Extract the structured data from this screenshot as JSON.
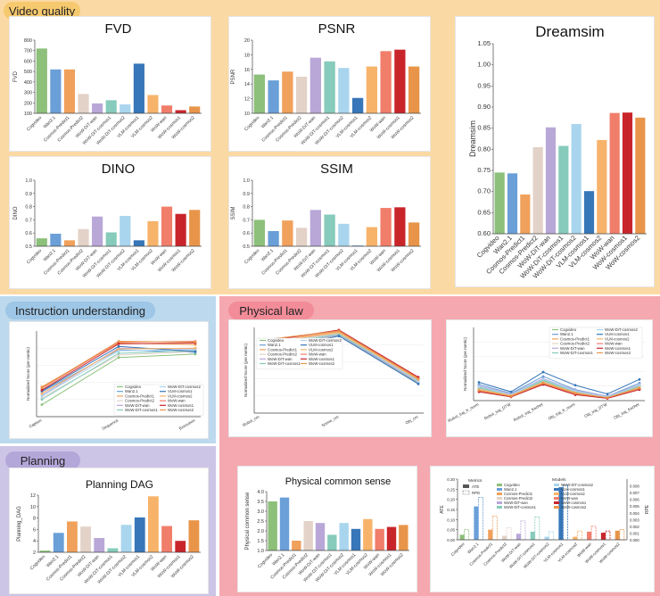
{
  "sections": {
    "video_quality": "Video quality",
    "instruction": "Instruction understanding",
    "physical_law": "Physical law",
    "planning": "Planning"
  },
  "colors": {
    "video_bg": "#fbd9a4",
    "instruction_bg": "#bcd9ee",
    "physical_bg": "#f5a8b0",
    "planning_bg": "#cdc5e6"
  },
  "chart_data": [
    {
      "type": "bar",
      "title": "FVD",
      "ylabel": "FVD",
      "ylim": [
        100,
        800
      ],
      "yticks": [
        100,
        200,
        300,
        400,
        500,
        600,
        700,
        800
      ],
      "categories": [
        "Cogvideo",
        "Wan2.1",
        "Cosmos-Predict1",
        "Cosmos-Predict2",
        "WoW-DiT-wan",
        "WoW-DiT-cosmos1",
        "WoW-DiT-cosmos2",
        "VLM-cosmos1",
        "VLM-cosmos2",
        "WoW-wan",
        "WoW-cosmos1",
        "WoW-cosmos2"
      ],
      "values": [
        720,
        520,
        520,
        285,
        195,
        225,
        185,
        575,
        275,
        175,
        130,
        165
      ]
    },
    {
      "type": "bar",
      "title": "PSNR",
      "ylabel": "PSNR",
      "ylim": [
        10,
        20
      ],
      "yticks": [
        10,
        12,
        14,
        16,
        18,
        20
      ],
      "categories": [
        "Cogvideo",
        "Wan2.1",
        "Cosmos-Predict1",
        "Cosmos-Predict2",
        "WoW-DiT-wan",
        "WoW-DiT-cosmos1",
        "WoW-DiT-cosmos2",
        "VLM-cosmos1",
        "VLM-cosmos2",
        "WoW-wan",
        "WoW-cosmos1",
        "WoW-cosmos2"
      ],
      "values": [
        15.3,
        14.5,
        15.7,
        15.0,
        17.6,
        17.1,
        16.2,
        12.1,
        16.4,
        18.5,
        18.7,
        16.4
      ]
    },
    {
      "type": "bar",
      "title": "Dreamsim",
      "ylabel": "Dreamsim",
      "ylim": [
        0.6,
        1.05
      ],
      "yticks": [
        "0.60",
        "0.65",
        "0.70",
        "0.75",
        "0.80",
        "0.85",
        "0.90",
        "0.95",
        "1.00",
        "1.05"
      ],
      "categories": [
        "Cogvideo",
        "Wan2.1",
        "Cosmos-Predict1",
        "Cosmos-Predict2",
        "WoW-DiT-wan",
        "WoW-DiT-cosmos1",
        "WoW-DiT-cosmos2",
        "VLM-cosmos1",
        "VLM-cosmos2",
        "WoW-wan",
        "WoW-cosmos1",
        "WoW-cosmos2"
      ],
      "values": [
        0.745,
        0.743,
        0.693,
        0.805,
        0.852,
        0.808,
        0.86,
        0.701,
        0.822,
        0.886,
        0.887,
        0.875
      ]
    },
    {
      "type": "bar",
      "title": "DINO",
      "ylabel": "DINO",
      "ylim": [
        0.5,
        1.0
      ],
      "yticks": [
        "0.5",
        "0.6",
        "0.7",
        "0.8",
        "0.9",
        "1.0"
      ],
      "categories": [
        "Cogvideo",
        "Wan2.1",
        "Cosmos-Predict1",
        "Cosmos-Predict2",
        "WoW-DiT-wan",
        "WoW-DiT-cosmos1",
        "WoW-DiT-cosmos2",
        "VLM-cosmos1",
        "VLM-cosmos2",
        "WoW-wan",
        "WoW-cosmos1",
        "WoW-cosmos2"
      ],
      "values": [
        0.56,
        0.595,
        0.545,
        0.63,
        0.725,
        0.605,
        0.73,
        0.545,
        0.69,
        0.8,
        0.745,
        0.775
      ]
    },
    {
      "type": "bar",
      "title": "SSIM",
      "ylabel": "SSIM",
      "ylim": [
        0.5,
        1.0
      ],
      "yticks": [
        "0.5",
        "0.6",
        "0.7",
        "0.8",
        "0.9",
        "1.0"
      ],
      "categories": [
        "Cogvideo",
        "Wan2.1",
        "Cosmos-Predict1",
        "Cosmos-Predict2",
        "WoW-DiT-wan",
        "WoW-DiT-cosmos1",
        "WoW-DiT-cosmos2",
        "VLM-cosmos1",
        "VLM-cosmos2",
        "WoW-wan",
        "WoW-cosmos1",
        "WoW-cosmos2"
      ],
      "values": [
        0.7,
        0.615,
        0.695,
        0.64,
        0.775,
        0.74,
        0.67,
        0.505,
        0.645,
        0.79,
        0.795,
        0.68
      ]
    },
    {
      "type": "line",
      "ylabel": "Normalized Score (per metric)",
      "x": [
        "Caption",
        "Sequence",
        "Execution"
      ],
      "series": [
        {
          "name": "Cogvideo",
          "values": [
            0.14,
            0.69,
            0.73
          ]
        },
        {
          "name": "Wan2.1",
          "values": [
            0.29,
            0.78,
            0.75
          ]
        },
        {
          "name": "Cosmos-Predict1",
          "values": [
            0.35,
            0.86,
            0.84
          ]
        },
        {
          "name": "Cosmos-Predict2",
          "values": [
            0.22,
            0.72,
            0.76
          ]
        },
        {
          "name": "WoW-DiT-wan",
          "values": [
            0.25,
            0.8,
            0.79
          ]
        },
        {
          "name": "WoW-DiT-cosmos1",
          "values": [
            0.2,
            0.74,
            0.77
          ]
        },
        {
          "name": "WoW-DiT-cosmos2",
          "values": [
            0.24,
            0.77,
            0.78
          ]
        },
        {
          "name": "VLM-cosmos1",
          "values": [
            0.3,
            0.82,
            0.76
          ]
        },
        {
          "name": "VLM-cosmos2",
          "values": [
            0.27,
            0.79,
            0.8
          ]
        },
        {
          "name": "WoW-wan",
          "values": [
            0.33,
            0.87,
            0.88
          ]
        },
        {
          "name": "WoW-cosmos1",
          "values": [
            0.31,
            0.85,
            0.86
          ]
        },
        {
          "name": "WoW-cosmos2",
          "values": [
            0.34,
            0.88,
            0.87
          ]
        }
      ]
    },
    {
      "type": "line",
      "ylabel": "Normalized Score (per metric)",
      "x": [
        "Robot_cm",
        "Scene_cm",
        "Obj_cm"
      ],
      "series": [
        {
          "name": "Cogvideo",
          "values": [
            0.74,
            0.9,
            0.35
          ]
        },
        {
          "name": "Wan2.1",
          "values": [
            0.77,
            0.92,
            0.36
          ]
        },
        {
          "name": "Cosmos-Predict1",
          "values": [
            0.82,
            0.95,
            0.4
          ]
        },
        {
          "name": "Cosmos-Predict2",
          "values": [
            0.8,
            0.93,
            0.37
          ]
        },
        {
          "name": "WoW-DiT-wan",
          "values": [
            0.76,
            0.91,
            0.36
          ]
        },
        {
          "name": "WoW-DiT-cosmos1",
          "values": [
            0.78,
            0.92,
            0.38
          ]
        },
        {
          "name": "WoW-DiT-cosmos2",
          "values": [
            0.79,
            0.94,
            0.37
          ]
        },
        {
          "name": "VLM-cosmos1",
          "values": [
            0.72,
            0.9,
            0.34
          ]
        },
        {
          "name": "VLM-cosmos2",
          "values": [
            0.81,
            0.94,
            0.39
          ]
        },
        {
          "name": "WoW-wan",
          "values": [
            0.84,
            0.96,
            0.41
          ]
        },
        {
          "name": "WoW-cosmos1",
          "values": [
            0.83,
            0.97,
            0.42
          ]
        },
        {
          "name": "WoW-cosmos2",
          "values": [
            0.85,
            0.96,
            0.4
          ]
        }
      ]
    },
    {
      "type": "line",
      "ylabel": "Normalized Score (per metric)",
      "x": [
        "Robot_traj_fr_norm",
        "Robot_traj_DTW",
        "Robot_traj_frechet",
        "Obj_traj_fr_norm",
        "Obj_traj_DTW",
        "Obj_traj_frechet"
      ],
      "series": [
        {
          "name": "Cogvideo",
          "values": [
            0.18,
            0.08,
            0.28,
            0.12,
            0.05,
            0.2
          ]
        },
        {
          "name": "Wan2.1",
          "values": [
            0.22,
            0.1,
            0.33,
            0.15,
            0.06,
            0.24
          ]
        },
        {
          "name": "Cosmos-Predict1",
          "values": [
            0.14,
            0.06,
            0.24,
            0.1,
            0.04,
            0.17
          ]
        },
        {
          "name": "Cosmos-Predict2",
          "values": [
            0.16,
            0.07,
            0.26,
            0.11,
            0.05,
            0.18
          ]
        },
        {
          "name": "WoW-DiT-wan",
          "values": [
            0.2,
            0.09,
            0.3,
            0.14,
            0.06,
            0.22
          ]
        },
        {
          "name": "WoW-DiT-cosmos1",
          "values": [
            0.17,
            0.08,
            0.27,
            0.12,
            0.05,
            0.19
          ]
        },
        {
          "name": "WoW-DiT-cosmos2",
          "values": [
            0.19,
            0.08,
            0.29,
            0.13,
            0.05,
            0.21
          ]
        },
        {
          "name": "VLM-cosmos1",
          "values": [
            0.25,
            0.12,
            0.39,
            0.21,
            0.09,
            0.29
          ]
        },
        {
          "name": "VLM-cosmos2",
          "values": [
            0.15,
            0.07,
            0.25,
            0.11,
            0.04,
            0.18
          ]
        },
        {
          "name": "WoW-wan",
          "values": [
            0.13,
            0.06,
            0.23,
            0.09,
            0.04,
            0.16
          ]
        },
        {
          "name": "WoW-cosmos1",
          "values": [
            0.12,
            0.05,
            0.22,
            0.08,
            0.03,
            0.15
          ]
        },
        {
          "name": "WoW-cosmos2",
          "values": [
            0.14,
            0.06,
            0.24,
            0.1,
            0.04,
            0.17
          ]
        }
      ]
    },
    {
      "type": "bar",
      "title": "Planning DAG",
      "ylabel": "Planning_DAG",
      "ylim": [
        2,
        12
      ],
      "yticks": [
        2,
        4,
        6,
        8,
        10,
        12
      ],
      "categories": [
        "Cogvideo",
        "Wan2.1",
        "Cosmos-Predict1",
        "Cosmos-Predict2",
        "WoW-DiT-wan",
        "WoW-DiT-cosmos1",
        "WoW-DiT-cosmos2",
        "VLM-cosmos1",
        "VLM-cosmos2",
        "WoW-wan",
        "WoW-cosmos1",
        "WoW-cosmos2"
      ],
      "values": [
        2.3,
        5.4,
        7.4,
        6.5,
        4.5,
        2.7,
        6.8,
        8.1,
        11.8,
        6.6,
        4.0,
        7.6
      ]
    },
    {
      "type": "bar",
      "title": "Physical common sense",
      "ylabel": "Physical common sense",
      "ylim": [
        1.0,
        4.0
      ],
      "yticks": [
        "1.0",
        "1.5",
        "2.0",
        "2.5",
        "3.0",
        "3.5",
        "4.0"
      ],
      "categories": [
        "Cogvideo",
        "Wan2.1",
        "Cosmos-Predict1",
        "Cosmos-Predict2",
        "WoW-DiT-wan",
        "WoW-DiT-cosmos1",
        "WoW-DiT-cosmos2",
        "VLM-cosmos1",
        "VLM-cosmos2",
        "WoW-wan",
        "WoW-cosmos1",
        "WoW-cosmos2"
      ],
      "values": [
        3.5,
        3.7,
        1.5,
        2.5,
        2.4,
        1.8,
        2.4,
        2.1,
        2.6,
        2.1,
        2.2,
        2.3
      ]
    },
    {
      "type": "bar",
      "ylabel": "ATE",
      "ylabel_right": "RPE",
      "legend_title_left": "Metrics",
      "legend_title_right": "Models",
      "metrics": [
        "ATE",
        "RPE"
      ],
      "ylim": [
        0,
        0.3
      ],
      "yticks": [
        "0.00",
        "0.05",
        "0.10",
        "0.15",
        "0.20",
        "0.25",
        "0.30"
      ],
      "ylim_right": [
        0,
        0.009
      ],
      "yticks_right": [
        "0.000",
        "0.001",
        "0.002",
        "0.003",
        "0.004",
        "0.005",
        "0.006",
        "0.007",
        "0.008"
      ],
      "categories": [
        "Cogvideo",
        "Wan2.1",
        "Cosmos-Predict1",
        "Cosmos-Predict2",
        "WoW-DiT-wan",
        "WoW-DiT-cosmos1",
        "WoW-DiT-cosmos2",
        "VLM-cosmos1",
        "VLM-cosmos2",
        "WoW-wan",
        "WoW-cosmos1",
        "WoW-cosmos2"
      ],
      "series": [
        {
          "name": "ATE",
          "values": [
            0.025,
            0.165,
            0.05,
            0.02,
            0.03,
            0.04,
            0.015,
            0.26,
            0.015,
            0.04,
            0.035,
            0.045
          ]
        },
        {
          "name": "RPE",
          "values": [
            0.0015,
            0.0063,
            0.0035,
            0.0018,
            0.0028,
            0.0034,
            0.0012,
            0.0081,
            0.0013,
            0.002,
            0.0013,
            0.0015
          ]
        }
      ]
    }
  ],
  "model_colors": [
    "#8dc07a",
    "#6a9fd8",
    "#f0a15c",
    "#e3d2c7",
    "#b9a7d8",
    "#86cbbb",
    "#a9d5ee",
    "#3776b8",
    "#f7b36a",
    "#f07e6a",
    "#c8252b",
    "#e8954a"
  ]
}
